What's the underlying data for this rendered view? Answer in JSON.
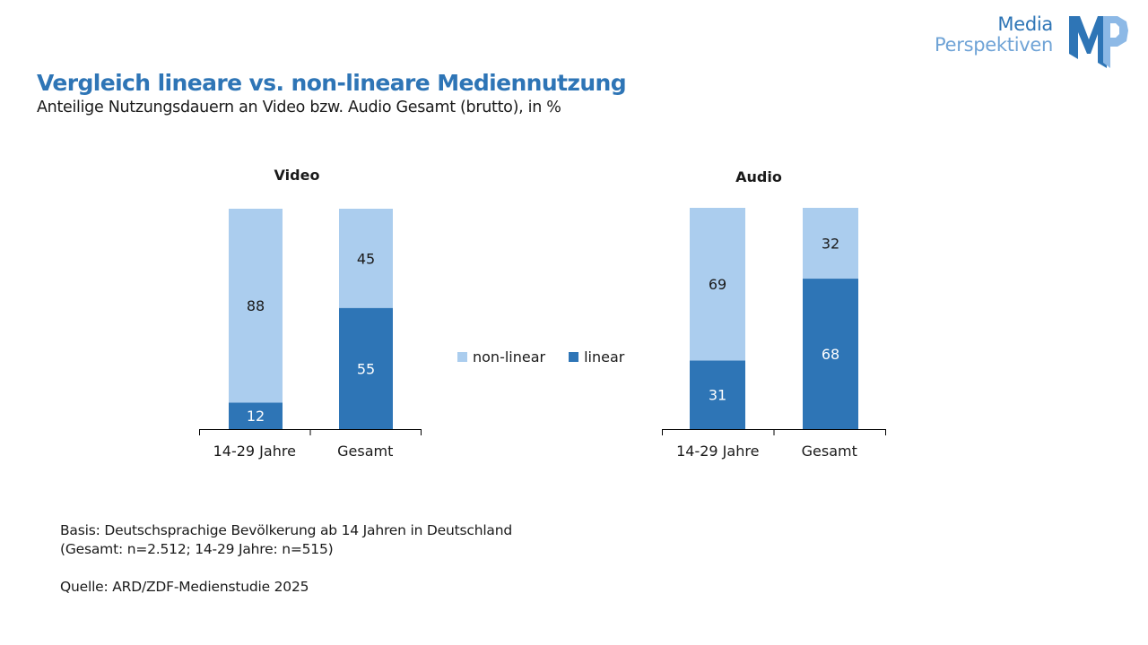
{
  "header": {
    "title": "Vergleich lineare vs. non-lineare Mediennutzung",
    "subtitle": "Anteilige Nutzungsdauern an Video bzw. Audio Gesamt (brutto), in %"
  },
  "logo": {
    "line1": "Media",
    "line2": "Perspektiven",
    "mark": "MP",
    "colors": {
      "dark": "#2e75b6",
      "light": "#6fa3d6"
    }
  },
  "legend": [
    {
      "label": "non-linear",
      "color": "#abcdee"
    },
    {
      "label": "linear",
      "color": "#2e75b6"
    }
  ],
  "chart_data": [
    {
      "type": "bar",
      "stacked": true,
      "title": "Video",
      "categories": [
        "14-29 Jahre",
        "Gesamt"
      ],
      "series": [
        {
          "name": "linear",
          "color": "#2e75b6",
          "values": [
            12,
            55
          ]
        },
        {
          "name": "non-linear",
          "color": "#abcdee",
          "values": [
            88,
            45
          ]
        }
      ],
      "ylim": [
        0,
        100
      ],
      "grid": false,
      "legend_position": "center-right"
    },
    {
      "type": "bar",
      "stacked": true,
      "title": "Audio",
      "categories": [
        "14-29 Jahre",
        "Gesamt"
      ],
      "series": [
        {
          "name": "linear",
          "color": "#2e75b6",
          "values": [
            31,
            68
          ]
        },
        {
          "name": "non-linear",
          "color": "#abcdee",
          "values": [
            69,
            32
          ]
        }
      ],
      "ylim": [
        0,
        100
      ],
      "grid": false,
      "legend_position": "center-left"
    }
  ],
  "footer": {
    "basis_line1": "Basis: Deutschsprachige Bevölkerung ab 14 Jahren in Deutschland",
    "basis_line2": "(Gesamt: n=2.512; 14-29 Jahre: n=515)",
    "source": "Quelle: ARD/ZDF-Medienstudie 2025"
  }
}
